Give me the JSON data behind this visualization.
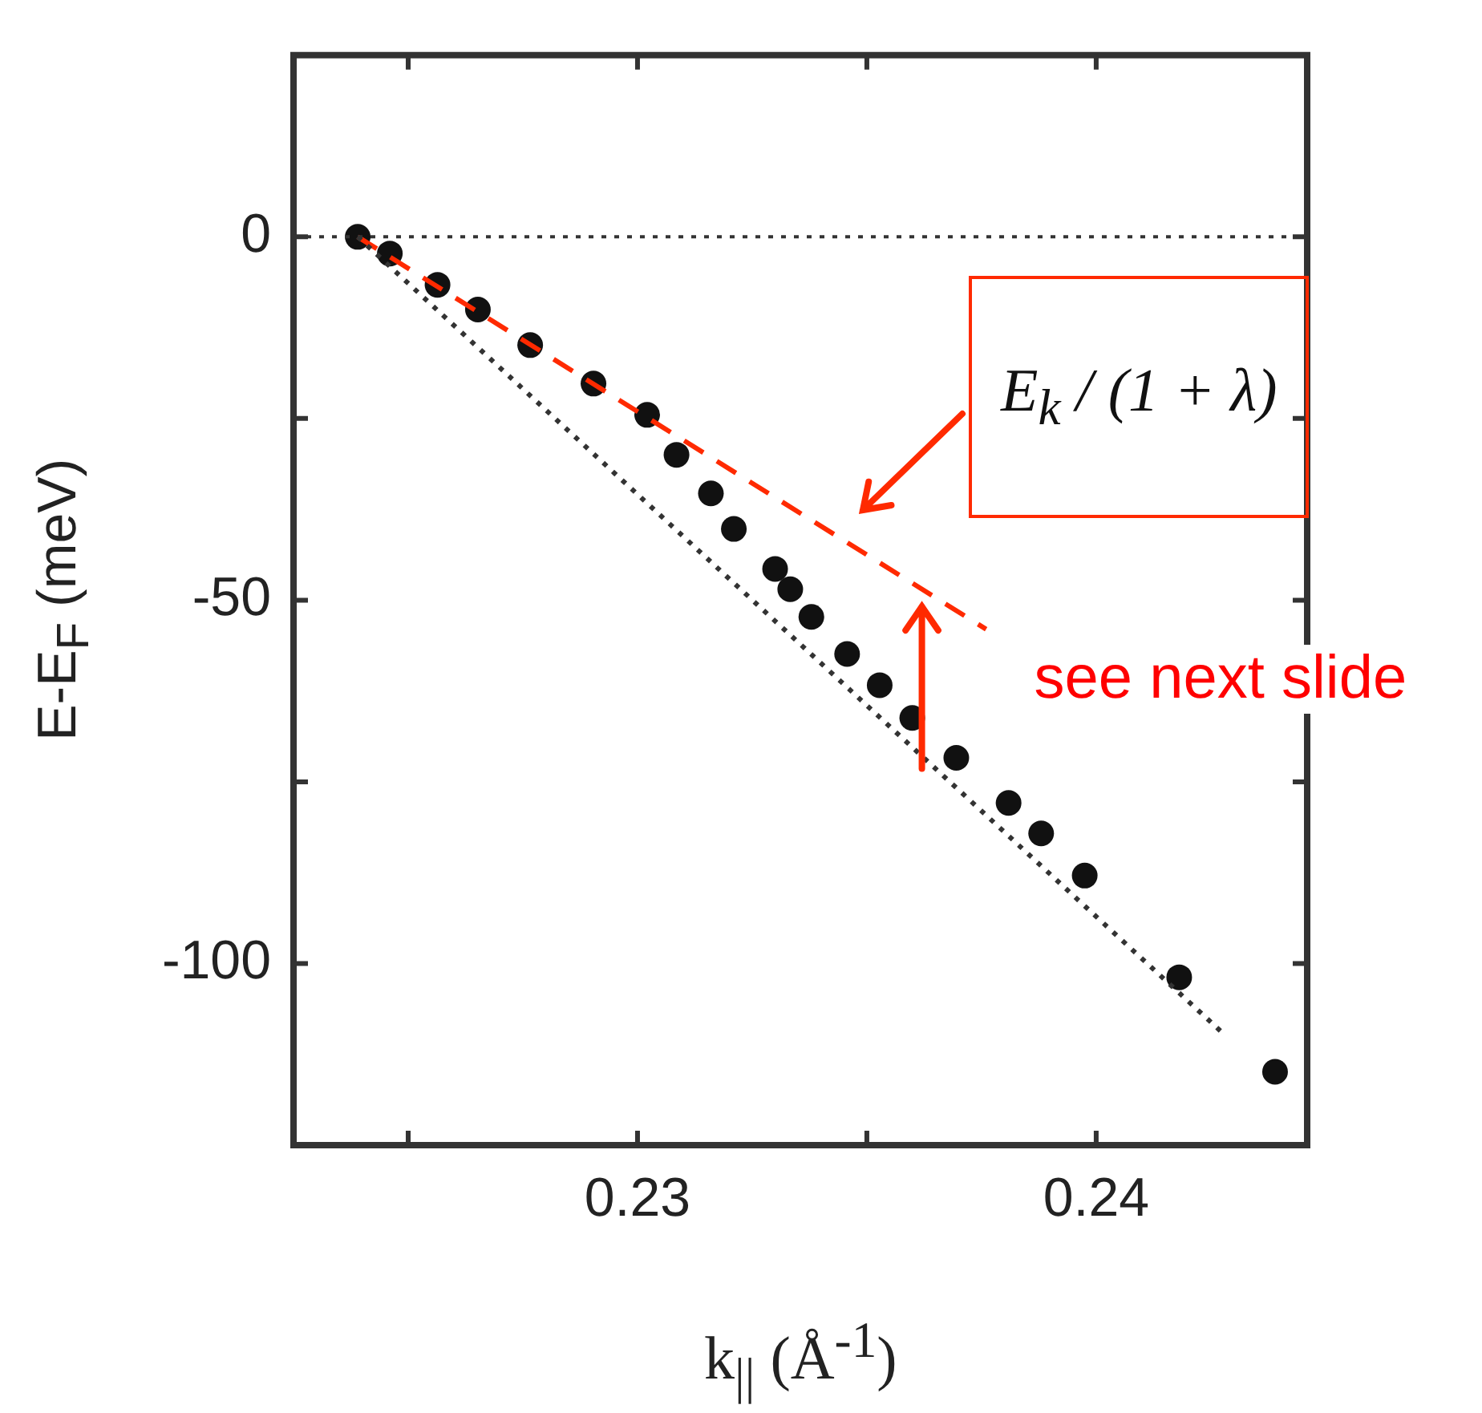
{
  "chart_data": {
    "type": "scatter",
    "xlabel": "k$_{||}$ (Å$^{-1}$)",
    "ylabel": "E-E$_{F}$ (meV)",
    "xlim": [
      0.2225,
      0.2446
    ],
    "xticks": [
      {
        "value": 0.225,
        "label": null
      },
      0.23,
      {
        "value": 0.235,
        "label": null
      },
      0.24
    ],
    "ylim": [
      -125,
      25
    ],
    "yticks": [
      0,
      {
        "value": -25,
        "label": null
      },
      -50,
      {
        "value": -75,
        "label": null
      },
      -100
    ],
    "grid": false,
    "legend": false,
    "marker": "circle",
    "series": [
      {
        "type": "line",
        "color": "#333333",
        "line_style": "dotted",
        "marker": "none",
        "x": [
          0.2239,
          0.24273
        ],
        "values": [
          0,
          -109.4
        ]
      },
      {
        "type": "line",
        "color": "#ff2a00",
        "line_style": "dashed",
        "marker": "none",
        "x": [
          0.2239,
          0.2376
        ],
        "values": [
          0,
          -54
        ]
      },
      {
        "color": "#111111",
        "x": [
          0.2239,
          0.2246,
          0.22564,
          0.22652,
          0.22766,
          0.22904,
          0.23021,
          0.23085,
          0.2316,
          0.2321,
          0.233,
          0.23333,
          0.23379,
          0.23457,
          0.23528,
          0.23599,
          0.23695,
          0.23809,
          0.2388,
          0.23975,
          0.24181,
          0.2439
        ],
        "values": [
          0,
          -2.3,
          -6.6,
          -10,
          -14.9,
          -20.2,
          -24.5,
          -30,
          -35.3,
          -40.2,
          -45.7,
          -48.5,
          -52.3,
          -57.4,
          -61.7,
          -66.2,
          -71.7,
          -77.9,
          -82.1,
          -87.9,
          -101.9,
          -114.9
        ]
      }
    ],
    "ref_lines": [
      {
        "axis": "y",
        "value": 0,
        "color": "#333333",
        "line_style": "dotted"
      }
    ],
    "annotations": [
      "E$_{k}$ / (1 + λ)",
      {
        "text": "see next slide",
        "x": 0.2362,
        "y": -50
      }
    ]
  }
}
